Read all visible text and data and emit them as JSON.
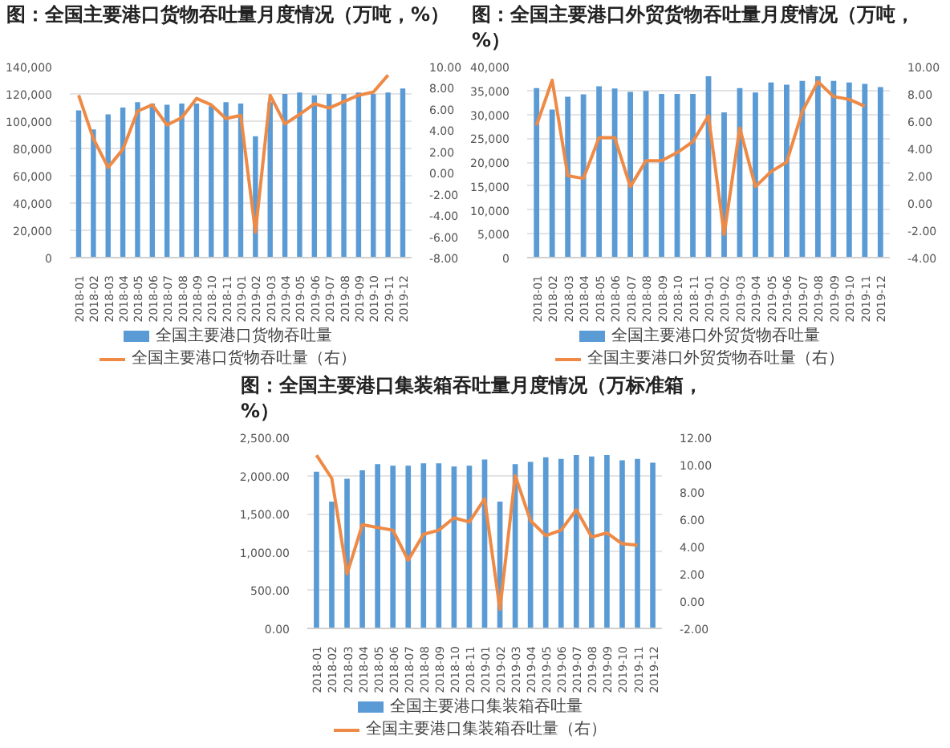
{
  "chart_data": [
    {
      "type": "bar",
      "title": "图：全国主要港口货物吞吐量月度情况（万吨，%）",
      "categories": [
        "2018-01",
        "2018-02",
        "2018-03",
        "2018-04",
        "2018-05",
        "2018-06",
        "2018-07",
        "2018-08",
        "2018-09",
        "2018-10",
        "2018-11",
        "2019-01",
        "2019-02",
        "2019-03",
        "2019-04",
        "2019-05",
        "2019-06",
        "2019-07",
        "2019-08",
        "2019-09",
        "2019-10",
        "2019-11",
        "2019-12"
      ],
      "series": [
        {
          "name": "全国主要港口货物吞吐量",
          "color": "#5b9bd5",
          "values": [
            108000,
            94000,
            105000,
            110000,
            114000,
            113000,
            112000,
            113000,
            113000,
            111000,
            114000,
            113000,
            89000,
            114000,
            120000,
            121000,
            119000,
            120000,
            120000,
            121000,
            120000,
            121000,
            124000
          ]
        },
        {
          "name": "全国主要港口货物吞吐量（右）",
          "type": "line",
          "axis": "y2",
          "color": "#ee8a45",
          "values": [
            7.3,
            3.2,
            0.5,
            2.2,
            5.8,
            6.4,
            4.5,
            5.2,
            7.0,
            6.4,
            5.1,
            5.4,
            -5.6,
            7.3,
            4.6,
            5.5,
            6.5,
            6.1,
            6.7,
            7.3,
            7.6,
            9.2,
            null
          ]
        }
      ],
      "ylim": [
        0,
        140000
      ],
      "yticks": [
        0,
        {
          "value": 20000,
          "label": "20,000"
        },
        {
          "value": 40000,
          "label": "40,000"
        },
        {
          "value": 60000,
          "label": "60,000"
        },
        {
          "value": 80000,
          "label": "80,000"
        },
        {
          "value": 100000,
          "label": "100,000"
        },
        {
          "value": 120000,
          "label": "120,000"
        },
        {
          "value": 140000,
          "label": "140,000"
        }
      ],
      "y2lim": [
        -8,
        10
      ],
      "y2ticks": [
        {
          "value": -8,
          "label": "-8.00"
        },
        {
          "value": -6,
          "label": "-6.00"
        },
        {
          "value": -4,
          "label": "-4.00"
        },
        {
          "value": -2,
          "label": "-2.00"
        },
        {
          "value": 0,
          "label": "0.00"
        },
        {
          "value": 2,
          "label": "2.00"
        },
        {
          "value": 4,
          "label": "4.00"
        },
        {
          "value": 6,
          "label": "6.00"
        },
        {
          "value": 8,
          "label": "8.00"
        },
        {
          "value": 10,
          "label": "10.00"
        }
      ],
      "grid": "y",
      "legend": "bottom"
    },
    {
      "type": "bar",
      "title": "图：全国主要港口外贸货物吞吐量月度情况（万吨，%）",
      "categories": [
        "2018-01",
        "2018-02",
        "2018-03",
        "2018-04",
        "2018-05",
        "2018-06",
        "2018-07",
        "2018-08",
        "2018-09",
        "2018-10",
        "2018-11",
        "2019-01",
        "2019-02",
        "2019-03",
        "2019-04",
        "2019-05",
        "2019-06",
        "2019-07",
        "2019-08",
        "2019-09",
        "2019-10",
        "2019-11",
        "2019-12"
      ],
      "series": [
        {
          "name": "全国主要港口外贸货物吞吐量",
          "color": "#5b9bd5",
          "values": [
            35500,
            31000,
            33700,
            34200,
            35900,
            35400,
            34700,
            34900,
            34300,
            34300,
            34300,
            38000,
            30400,
            35500,
            34600,
            36700,
            36200,
            37000,
            38000,
            37000,
            36700,
            36400,
            35700
          ]
        },
        {
          "name": "全国主要港口外贸货物吞吐量（右）",
          "type": "line",
          "axis": "y2",
          "color": "#ee8a45",
          "values": [
            5.7,
            9.0,
            2.0,
            1.8,
            4.8,
            4.8,
            1.2,
            3.1,
            3.1,
            3.7,
            4.5,
            6.4,
            -2.3,
            5.5,
            1.2,
            2.3,
            3.0,
            6.7,
            8.9,
            7.8,
            7.6,
            7.1,
            null
          ]
        }
      ],
      "ylim": [
        0,
        40000
      ],
      "yticks": [
        0,
        {
          "value": 5000,
          "label": "5,000"
        },
        {
          "value": 10000,
          "label": "10,000"
        },
        {
          "value": 15000,
          "label": "15,000"
        },
        {
          "value": 20000,
          "label": "20,000"
        },
        {
          "value": 25000,
          "label": "25,000"
        },
        {
          "value": 30000,
          "label": "30,000"
        },
        {
          "value": 35000,
          "label": "35,000"
        },
        {
          "value": 40000,
          "label": "40,000"
        }
      ],
      "y2lim": [
        -4,
        10
      ],
      "y2ticks": [
        {
          "value": -4,
          "label": "-4.00"
        },
        {
          "value": -2,
          "label": "-2.00"
        },
        {
          "value": 0,
          "label": "0.00"
        },
        {
          "value": 2,
          "label": "2.00"
        },
        {
          "value": 4,
          "label": "4.00"
        },
        {
          "value": 6,
          "label": "6.00"
        },
        {
          "value": 8,
          "label": "8.00"
        },
        {
          "value": 10,
          "label": "10.00"
        }
      ],
      "grid": "y",
      "legend": "bottom"
    },
    {
      "type": "bar",
      "title": "图：全国主要港口集装箱吞吐量月度情况（万标准箱，%）",
      "categories": [
        "2018-01",
        "2018-02",
        "2018-03",
        "2018-04",
        "2018-05",
        "2018-06",
        "2018-07",
        "2018-08",
        "2018-09",
        "2018-10",
        "2018-11",
        "2019-01",
        "2019-02",
        "2019-03",
        "2019-04",
        "2019-05",
        "2019-06",
        "2019-07",
        "2019-08",
        "2019-09",
        "2019-10",
        "2019-11",
        "2019-12"
      ],
      "series": [
        {
          "name": "全国主要港口集装箱吞吐量",
          "color": "#5b9bd5",
          "values": [
            2050,
            1660,
            1960,
            2070,
            2150,
            2130,
            2130,
            2160,
            2160,
            2120,
            2130,
            2210,
            1660,
            2150,
            2180,
            2240,
            2220,
            2270,
            2250,
            2270,
            2200,
            2220,
            2170
          ]
        },
        {
          "name": "全国主要港口集装箱吞吐量（右）",
          "type": "line",
          "axis": "y2",
          "color": "#ee8a45",
          "values": [
            10.7,
            9.0,
            2.0,
            5.6,
            5.4,
            5.2,
            3.0,
            4.9,
            5.2,
            6.1,
            5.8,
            7.5,
            -0.6,
            9.2,
            5.9,
            4.8,
            5.2,
            6.7,
            4.7,
            5.0,
            4.2,
            4.1,
            null
          ]
        }
      ],
      "ylim": [
        0,
        2500
      ],
      "yticks": [
        {
          "value": 0,
          "label": "0.00"
        },
        {
          "value": 500,
          "label": "500.00"
        },
        {
          "value": 1000,
          "label": "1,000.00"
        },
        {
          "value": 1500,
          "label": "1,500.00"
        },
        {
          "value": 2000,
          "label": "2,000.00"
        },
        {
          "value": 2500,
          "label": "2,500.00"
        }
      ],
      "y2lim": [
        -2,
        12
      ],
      "y2ticks": [
        {
          "value": -2,
          "label": "-2.00"
        },
        {
          "value": 0,
          "label": "0.00"
        },
        {
          "value": 2,
          "label": "2.00"
        },
        {
          "value": 4,
          "label": "4.00"
        },
        {
          "value": 6,
          "label": "6.00"
        },
        {
          "value": 8,
          "label": "8.00"
        },
        {
          "value": 10,
          "label": "10.00"
        },
        {
          "value": 12,
          "label": "12.00"
        }
      ],
      "grid": "y",
      "legend": "bottom"
    }
  ]
}
